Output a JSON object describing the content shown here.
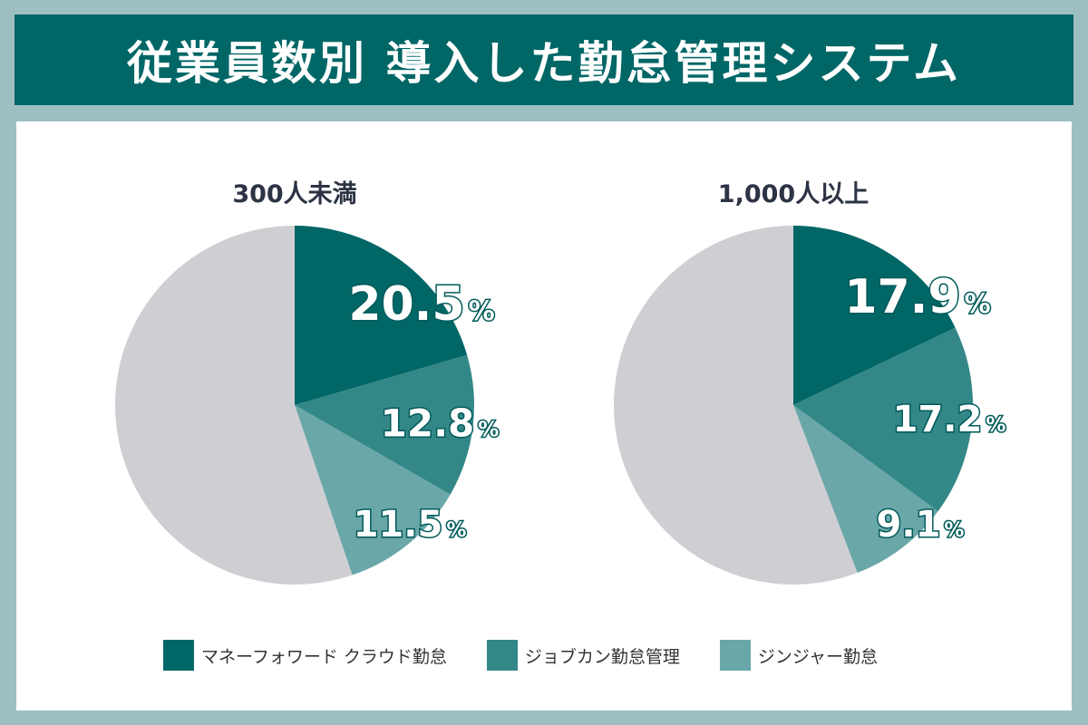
{
  "title": "従業員数別 導入した勤怠管理システム",
  "colors": {
    "money_forward": "#006666",
    "jobcan": "#338787",
    "ginger": "#6aa7a9",
    "other": "#cfcfd3"
  },
  "chart_data": [
    {
      "type": "pie",
      "title": "300人未満",
      "unit": "%",
      "series": [
        {
          "name": "マネーフォワード クラウド勤怠",
          "value": 20.5,
          "label": "20.5"
        },
        {
          "name": "ジョブカン勤怠管理",
          "value": 12.8,
          "label": "12.8"
        },
        {
          "name": "ジンジャー勤怠",
          "value": 11.5,
          "label": "11.5"
        }
      ],
      "remainder": 55.2
    },
    {
      "type": "pie",
      "title": "1,000人以上",
      "unit": "%",
      "series": [
        {
          "name": "マネーフォワード クラウド勤怠",
          "value": 17.9,
          "label": "17.9"
        },
        {
          "name": "ジョブカン勤怠管理",
          "value": 17.2,
          "label": "17.2"
        },
        {
          "name": "ジンジャー勤怠",
          "value": 9.1,
          "label": "9.1"
        }
      ],
      "remainder": 55.8
    }
  ],
  "legend": [
    {
      "label": "マネーフォワード クラウド勤怠",
      "color_key": "money_forward"
    },
    {
      "label": "ジョブカン勤怠管理",
      "color_key": "jobcan"
    },
    {
      "label": "ジンジャー勤怠",
      "color_key": "ginger"
    }
  ]
}
